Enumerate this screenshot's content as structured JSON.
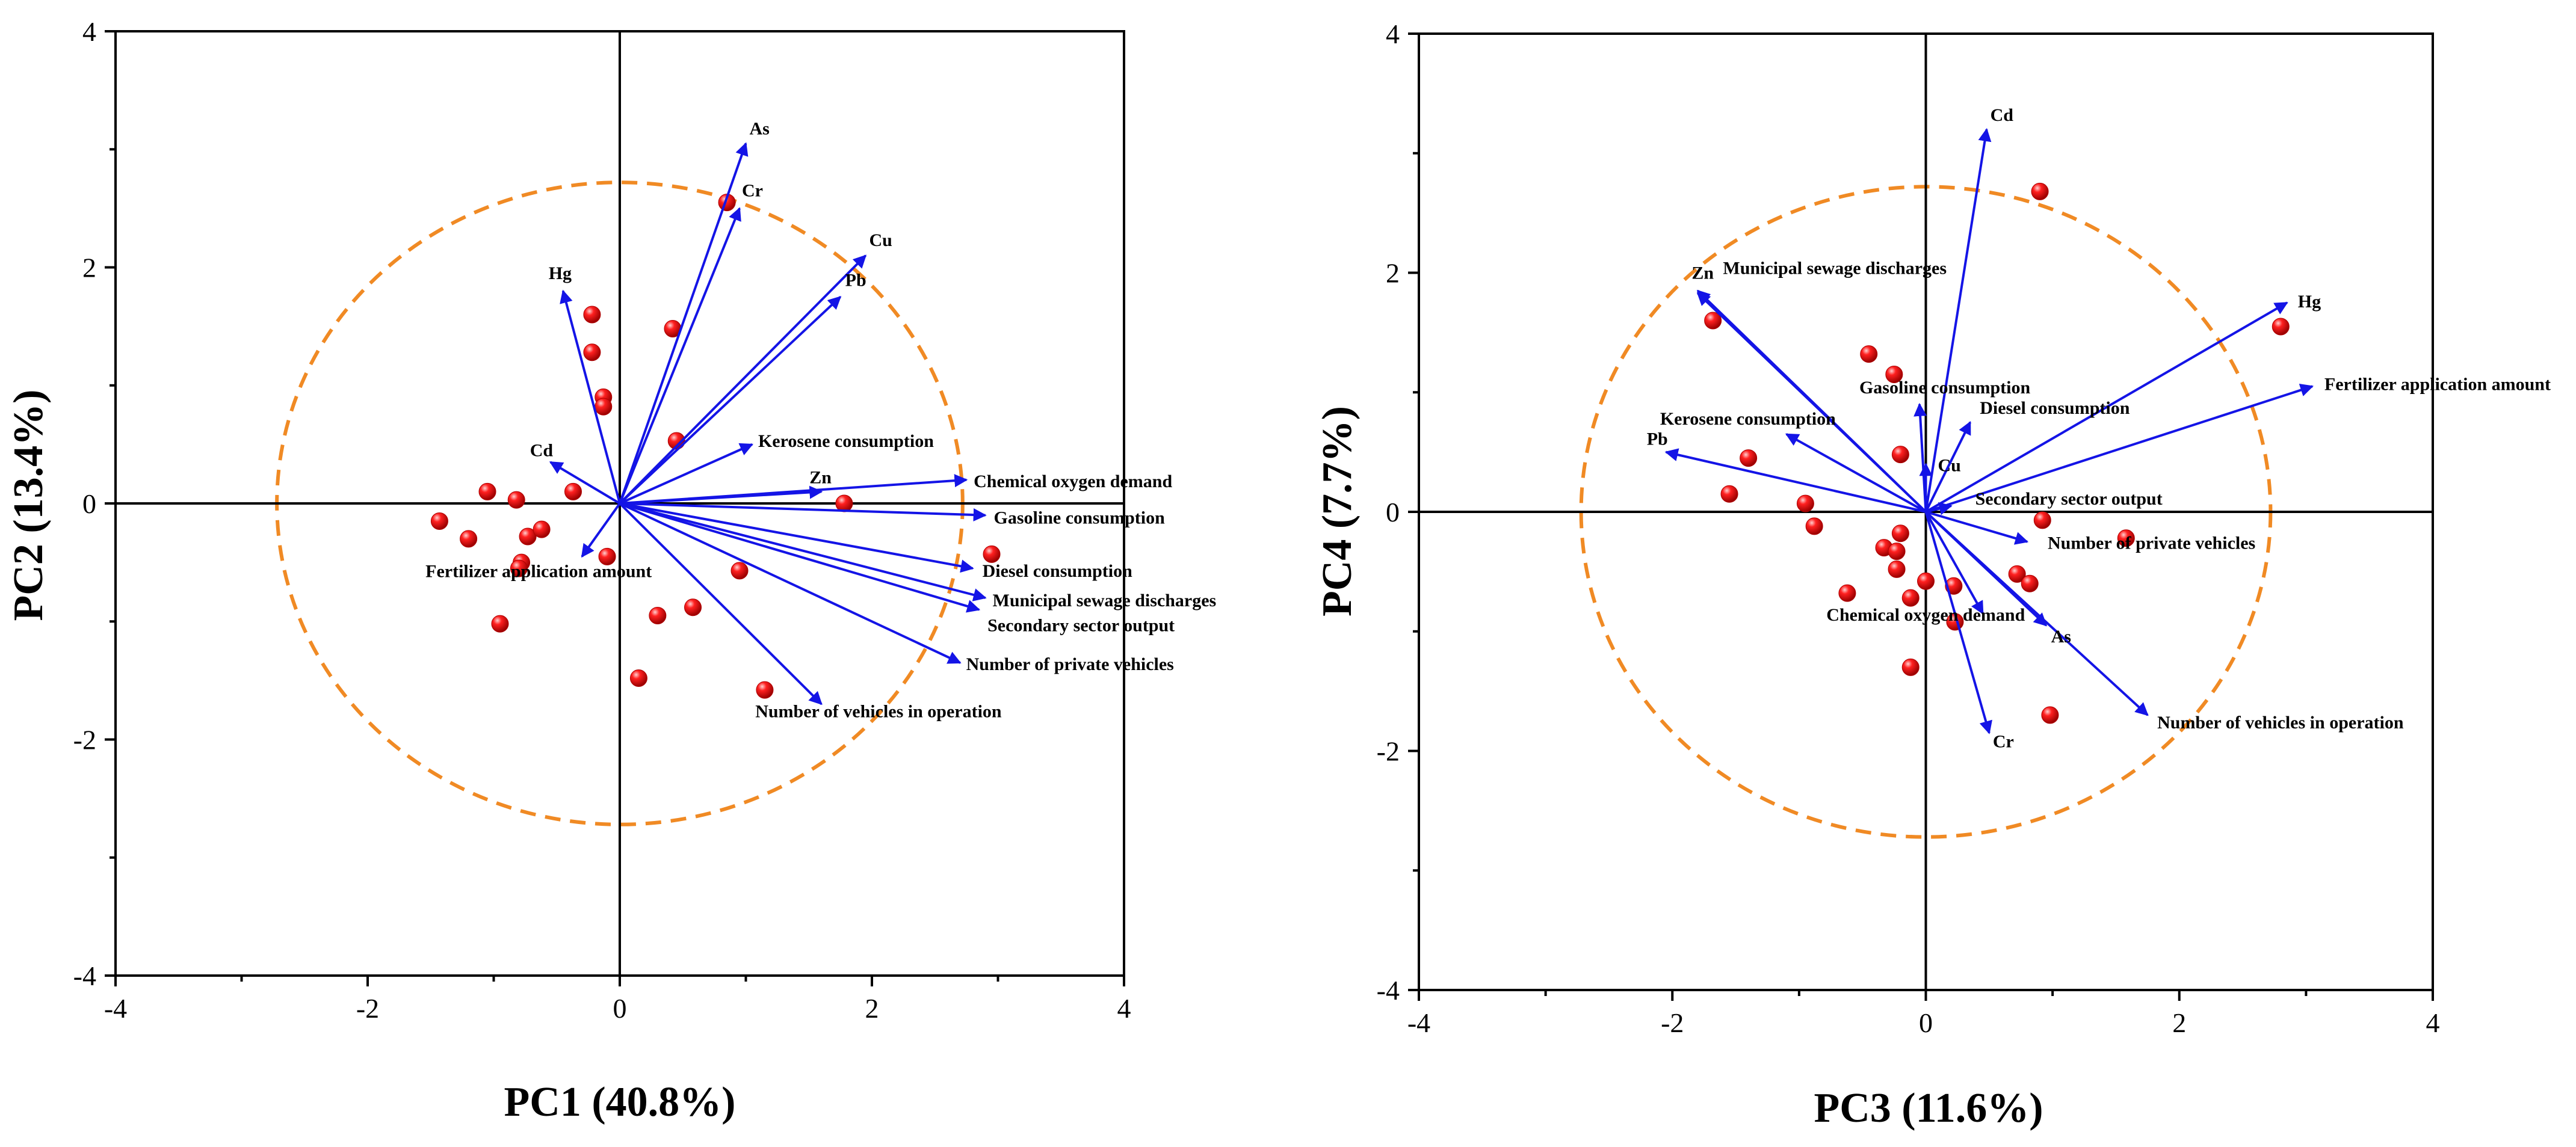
{
  "colors": {
    "arrow": "#1414e6",
    "circle": "#f08a24",
    "point": "#e00000",
    "axis": "#000000"
  },
  "chart_data": [
    {
      "type": "biplot",
      "xlabel": "PC1 (40.8%)",
      "ylabel": "PC2 (13.4%)",
      "xlim": [
        -4,
        4
      ],
      "ylim": [
        -4,
        4
      ],
      "xticks": [
        "-4",
        "-2",
        "0",
        "2",
        "4"
      ],
      "yticks": [
        "4",
        "2",
        "0",
        "-2",
        "-4"
      ],
      "circle_radius": 2.72,
      "loadings": [
        {
          "name": "As",
          "x": 1.0,
          "y": 3.05
        },
        {
          "name": "Cr",
          "x": 0.95,
          "y": 2.5
        },
        {
          "name": "Cu",
          "x": 1.95,
          "y": 2.1
        },
        {
          "name": "Pb",
          "x": 1.75,
          "y": 1.75
        },
        {
          "name": "Hg",
          "x": -0.45,
          "y": 1.8
        },
        {
          "name": "Kerosene consumption",
          "x": 1.05,
          "y": 0.5
        },
        {
          "name": "Zn",
          "x": 1.6,
          "y": 0.1
        },
        {
          "name": "Cd",
          "x": -0.55,
          "y": 0.35
        },
        {
          "name": "Chemical oxygen demand",
          "x": 2.75,
          "y": 0.2
        },
        {
          "name": "Gasoline consumption",
          "x": 2.9,
          "y": -0.1
        },
        {
          "name": "Fertilizer application amount",
          "x": -0.3,
          "y": -0.45
        },
        {
          "name": "Diesel consumption",
          "x": 2.8,
          "y": -0.55
        },
        {
          "name": "Municipal sewage discharges",
          "x": 2.9,
          "y": -0.8
        },
        {
          "name": "Secondary sector output",
          "x": 2.85,
          "y": -0.9
        },
        {
          "name": "Number of private vehicles",
          "x": 2.7,
          "y": -1.35
        },
        {
          "name": "Number of vehicles in operation",
          "x": 1.6,
          "y": -1.7
        }
      ],
      "scores": [
        {
          "x": 0.85,
          "y": 2.55
        },
        {
          "x": 0.42,
          "y": 1.48
        },
        {
          "x": -0.22,
          "y": 1.6
        },
        {
          "x": -0.22,
          "y": 1.28
        },
        {
          "x": -0.13,
          "y": 0.9
        },
        {
          "x": -0.13,
          "y": 0.82
        },
        {
          "x": 0.45,
          "y": 0.53
        },
        {
          "x": -0.37,
          "y": 0.1
        },
        {
          "x": -1.05,
          "y": 0.1
        },
        {
          "x": -0.82,
          "y": 0.03
        },
        {
          "x": -1.43,
          "y": -0.15
        },
        {
          "x": -1.2,
          "y": -0.3
        },
        {
          "x": -0.73,
          "y": -0.28
        },
        {
          "x": -0.62,
          "y": -0.22
        },
        {
          "x": -0.78,
          "y": -0.5
        },
        {
          "x": -0.8,
          "y": -0.55
        },
        {
          "x": -0.1,
          "y": -0.45
        },
        {
          "x": -0.95,
          "y": -1.02
        },
        {
          "x": 0.3,
          "y": -0.95
        },
        {
          "x": 0.58,
          "y": -0.88
        },
        {
          "x": 0.95,
          "y": -0.57
        },
        {
          "x": 0.15,
          "y": -1.48
        },
        {
          "x": 1.15,
          "y": -1.58
        },
        {
          "x": 1.78,
          "y": 0.0
        },
        {
          "x": 2.95,
          "y": -0.43
        }
      ]
    },
    {
      "type": "biplot",
      "xlabel": "PC3 (11.6%)",
      "ylabel": "PC4 (7.7%)",
      "xlim": [
        -4,
        4
      ],
      "ylim": [
        -4,
        4
      ],
      "xticks": [
        "-4",
        "-2",
        "0",
        "2",
        "4"
      ],
      "yticks": [
        "4",
        "2",
        "0",
        "-2",
        "-4"
      ],
      "circle_radius": 2.72,
      "loadings": [
        {
          "name": "Cd",
          "x": 0.48,
          "y": 3.2
        },
        {
          "name": "Zn",
          "x": -1.8,
          "y": 1.83
        },
        {
          "name": "Municipal sewage discharges",
          "x": -1.8,
          "y": 1.85
        },
        {
          "name": "Hg",
          "x": 2.85,
          "y": 1.75
        },
        {
          "name": "Fertilizer application amount",
          "x": 3.05,
          "y": 1.05
        },
        {
          "name": "Gasoline consumption",
          "x": -0.05,
          "y": 0.9
        },
        {
          "name": "Diesel consumption",
          "x": 0.35,
          "y": 0.75
        },
        {
          "name": "Kerosene consumption",
          "x": -1.1,
          "y": 0.65
        },
        {
          "name": "Pb",
          "x": -2.05,
          "y": 0.5
        },
        {
          "name": "Cu",
          "x": 0.0,
          "y": 0.4
        },
        {
          "name": "Secondary sector output",
          "x": 0.2,
          "y": 0.05
        },
        {
          "name": "Number of private vehicles",
          "x": 0.8,
          "y": -0.25
        },
        {
          "name": "Chemical oxygen demand",
          "x": 0.45,
          "y": -0.85
        },
        {
          "name": "As",
          "x": 0.95,
          "y": -0.95
        },
        {
          "name": "Cr",
          "x": 0.5,
          "y": -1.85
        },
        {
          "name": "Number of vehicles in operation",
          "x": 1.75,
          "y": -1.7
        }
      ],
      "scores": [
        {
          "x": 0.9,
          "y": 2.68
        },
        {
          "x": 2.8,
          "y": 1.55
        },
        {
          "x": -1.68,
          "y": 1.6
        },
        {
          "x": -0.45,
          "y": 1.32
        },
        {
          "x": -0.25,
          "y": 1.15
        },
        {
          "x": -1.4,
          "y": 0.45
        },
        {
          "x": -0.2,
          "y": 0.48
        },
        {
          "x": -1.55,
          "y": 0.15
        },
        {
          "x": -0.95,
          "y": 0.07
        },
        {
          "x": -0.88,
          "y": -0.12
        },
        {
          "x": 0.92,
          "y": -0.07
        },
        {
          "x": 1.58,
          "y": -0.22
        },
        {
          "x": -0.2,
          "y": -0.18
        },
        {
          "x": -0.33,
          "y": -0.3
        },
        {
          "x": -0.23,
          "y": -0.33
        },
        {
          "x": -0.23,
          "y": -0.48
        },
        {
          "x": -0.62,
          "y": -0.68
        },
        {
          "x": 0.0,
          "y": -0.58
        },
        {
          "x": 0.22,
          "y": -0.62
        },
        {
          "x": -0.12,
          "y": -0.72
        },
        {
          "x": 0.72,
          "y": -0.52
        },
        {
          "x": 0.82,
          "y": -0.6
        },
        {
          "x": 0.23,
          "y": -0.92
        },
        {
          "x": -0.12,
          "y": -1.3
        },
        {
          "x": 0.98,
          "y": -1.7
        }
      ]
    }
  ]
}
